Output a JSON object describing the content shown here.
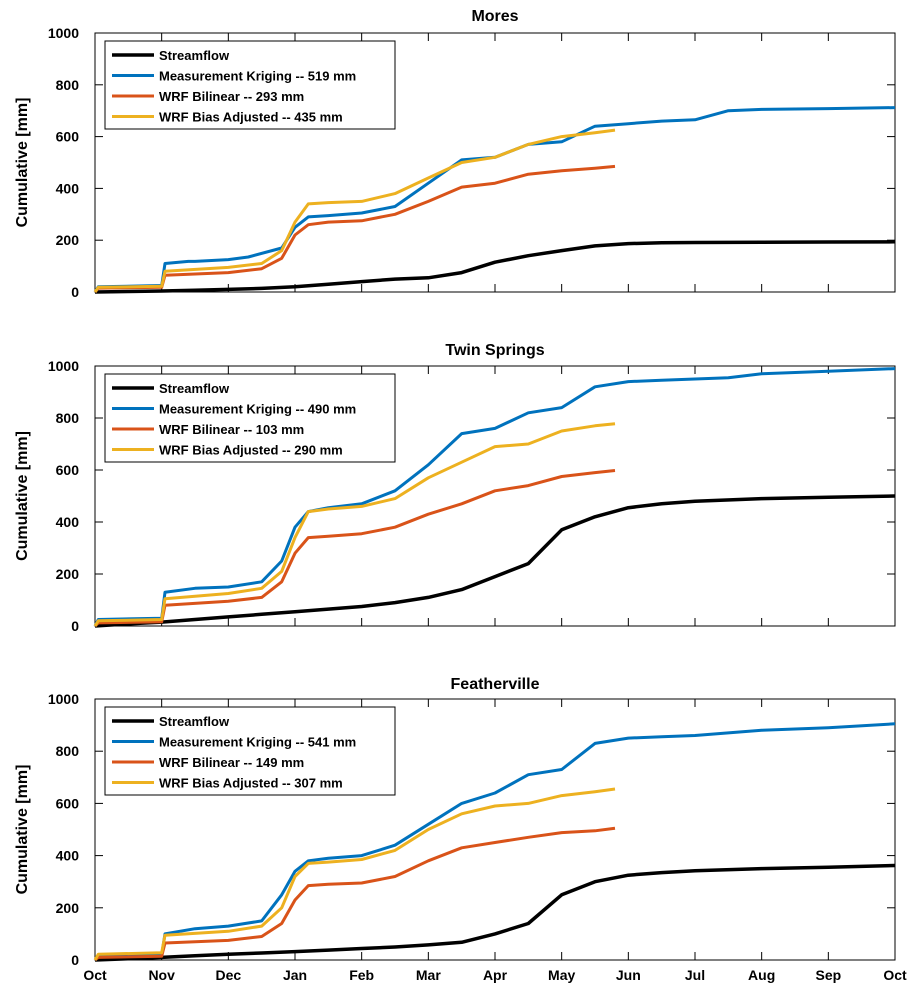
{
  "chart_data": [
    {
      "type": "line",
      "title": "Mores",
      "ylabel": "Cumulative [mm]",
      "xlabel": "",
      "ylim": [
        0,
        1000
      ],
      "yticks": [
        0,
        200,
        400,
        600,
        800,
        1000
      ],
      "xlim": [
        0,
        12
      ],
      "xticks": [
        0,
        1,
        2,
        3,
        4,
        5,
        6,
        7,
        8,
        9,
        10,
        11,
        12
      ],
      "xticklabels": [],
      "legend_position": "top-left",
      "grid": false,
      "series": [
        {
          "name": "Streamflow",
          "color": "#000000",
          "x": [
            0,
            0.5,
            1,
            1.5,
            2,
            2.5,
            3,
            3.5,
            4,
            4.5,
            5,
            5.5,
            6,
            6.5,
            7,
            7.5,
            8,
            8.5,
            9,
            10,
            11,
            12
          ],
          "y": [
            0,
            2,
            4,
            7,
            10,
            14,
            20,
            30,
            40,
            50,
            55,
            75,
            115,
            140,
            160,
            178,
            187,
            190,
            191,
            192,
            193,
            194
          ]
        },
        {
          "name": "Measurement Kriging -- 519 mm",
          "color": "#0072BD",
          "x": [
            0,
            0.05,
            1,
            1.05,
            1.4,
            1.5,
            2,
            2.3,
            2.8,
            3.0,
            3.2,
            3.5,
            4,
            4.5,
            5,
            5.5,
            6,
            6.5,
            7,
            7.5,
            8,
            8.5,
            9,
            9.5,
            10,
            11,
            12
          ],
          "y": [
            0,
            20,
            25,
            110,
            118,
            118,
            125,
            135,
            170,
            250,
            290,
            295,
            305,
            330,
            420,
            510,
            520,
            570,
            580,
            640,
            650,
            660,
            665,
            700,
            705,
            708,
            712
          ]
        },
        {
          "name": "WRF Bilinear -- 293 mm",
          "color": "#D95319",
          "x": [
            0,
            0.05,
            1,
            1.05,
            2,
            2.5,
            2.8,
            3.0,
            3.2,
            3.5,
            4,
            4.5,
            5,
            5.5,
            6,
            6.5,
            7,
            7.5,
            7.8
          ],
          "y": [
            0,
            15,
            18,
            65,
            75,
            90,
            130,
            220,
            260,
            270,
            275,
            300,
            350,
            405,
            420,
            455,
            468,
            478,
            485
          ]
        },
        {
          "name": "WRF Bias Adjusted -- 435 mm",
          "color": "#EDB120",
          "x": [
            0,
            0.05,
            1,
            1.05,
            2,
            2.5,
            2.8,
            3.0,
            3.2,
            3.5,
            4,
            4.5,
            5,
            5.5,
            6,
            6.5,
            7,
            7.5,
            7.8
          ],
          "y": [
            0,
            18,
            22,
            80,
            95,
            110,
            160,
            270,
            340,
            345,
            350,
            380,
            440,
            500,
            520,
            570,
            600,
            615,
            625
          ]
        }
      ]
    },
    {
      "type": "line",
      "title": "Twin Springs",
      "ylabel": "Cumulative [mm]",
      "xlabel": "",
      "ylim": [
        0,
        1000
      ],
      "yticks": [
        0,
        200,
        400,
        600,
        800,
        1000
      ],
      "xlim": [
        0,
        12
      ],
      "xticks": [
        0,
        1,
        2,
        3,
        4,
        5,
        6,
        7,
        8,
        9,
        10,
        11,
        12
      ],
      "xticklabels": [],
      "legend_position": "top-left",
      "grid": false,
      "series": [
        {
          "name": "Streamflow",
          "color": "#000000",
          "x": [
            0,
            0.5,
            1,
            1.5,
            2,
            2.5,
            3,
            3.5,
            4,
            4.5,
            5,
            5.5,
            6,
            6.5,
            7,
            7.5,
            8,
            8.5,
            9,
            10,
            11,
            12
          ],
          "y": [
            0,
            8,
            15,
            25,
            35,
            45,
            55,
            65,
            75,
            90,
            110,
            140,
            190,
            240,
            370,
            420,
            455,
            470,
            480,
            490,
            495,
            500
          ]
        },
        {
          "name": "Measurement Kriging -- 490 mm",
          "color": "#0072BD",
          "x": [
            0,
            0.05,
            1,
            1.05,
            1.5,
            2,
            2.5,
            2.8,
            3.0,
            3.2,
            3.5,
            4,
            4.5,
            5,
            5.5,
            6,
            6.5,
            7,
            7.5,
            8,
            8.5,
            9,
            9.5,
            10,
            11,
            12
          ],
          "y": [
            0,
            25,
            30,
            130,
            145,
            150,
            170,
            250,
            380,
            440,
            455,
            470,
            520,
            620,
            740,
            760,
            820,
            840,
            920,
            940,
            945,
            950,
            955,
            970,
            980,
            990
          ]
        },
        {
          "name": "WRF Bilinear -- 103 mm",
          "color": "#D95319",
          "x": [
            0,
            0.05,
            1,
            1.05,
            2,
            2.5,
            2.8,
            3.0,
            3.2,
            3.5,
            4,
            4.5,
            5,
            5.5,
            6,
            6.5,
            7,
            7.5,
            7.8
          ],
          "y": [
            0,
            12,
            16,
            80,
            95,
            110,
            170,
            280,
            340,
            345,
            355,
            380,
            430,
            470,
            520,
            540,
            575,
            590,
            598
          ]
        },
        {
          "name": "WRF Bias Adjusted -- 290 mm",
          "color": "#EDB120",
          "x": [
            0,
            0.05,
            1,
            1.05,
            2,
            2.5,
            2.8,
            3.0,
            3.2,
            3.5,
            4,
            4.5,
            5,
            5.5,
            6,
            6.5,
            7,
            7.5,
            7.8
          ],
          "y": [
            0,
            20,
            25,
            105,
            125,
            145,
            210,
            340,
            440,
            450,
            460,
            490,
            570,
            630,
            690,
            700,
            750,
            770,
            778
          ]
        }
      ]
    },
    {
      "type": "line",
      "title": "Featherville",
      "ylabel": "Cumulative [mm]",
      "xlabel": "",
      "ylim": [
        0,
        1000
      ],
      "yticks": [
        0,
        200,
        400,
        600,
        800,
        1000
      ],
      "xlim": [
        0,
        12
      ],
      "xticks": [
        0,
        1,
        2,
        3,
        4,
        5,
        6,
        7,
        8,
        9,
        10,
        11,
        12
      ],
      "xticklabels": [
        "Oct",
        "Nov",
        "Dec",
        "Jan",
        "Feb",
        "Mar",
        "Apr",
        "May",
        "Jun",
        "Jul",
        "Aug",
        "Sep",
        "Oct"
      ],
      "legend_position": "top-left",
      "grid": false,
      "series": [
        {
          "name": "Streamflow",
          "color": "#000000",
          "x": [
            0,
            0.5,
            1,
            1.5,
            2,
            2.5,
            3,
            3.5,
            4,
            4.5,
            5,
            5.5,
            6,
            6.5,
            7,
            7.5,
            8,
            8.5,
            9,
            10,
            11,
            12
          ],
          "y": [
            0,
            5,
            10,
            16,
            22,
            27,
            32,
            38,
            44,
            50,
            58,
            68,
            100,
            140,
            250,
            300,
            325,
            335,
            342,
            350,
            355,
            362
          ]
        },
        {
          "name": "Measurement Kriging -- 541 mm",
          "color": "#0072BD",
          "x": [
            0,
            0.05,
            1,
            1.05,
            1.5,
            2,
            2.5,
            2.8,
            3.0,
            3.2,
            3.5,
            4,
            4.5,
            5,
            5.5,
            6,
            6.5,
            7,
            7.5,
            8,
            8.5,
            9,
            9.5,
            10,
            11,
            12
          ],
          "y": [
            0,
            15,
            20,
            100,
            120,
            130,
            150,
            250,
            340,
            380,
            390,
            400,
            440,
            520,
            600,
            640,
            710,
            730,
            830,
            850,
            855,
            860,
            870,
            880,
            890,
            905
          ]
        },
        {
          "name": "WRF Bilinear -- 149 mm",
          "color": "#D95319",
          "x": [
            0,
            0.05,
            1,
            1.05,
            2,
            2.5,
            2.8,
            3.0,
            3.2,
            3.5,
            4,
            4.5,
            5,
            5.5,
            6,
            6.5,
            7,
            7.5,
            7.8
          ],
          "y": [
            0,
            10,
            14,
            65,
            75,
            90,
            140,
            230,
            285,
            290,
            295,
            320,
            380,
            430,
            450,
            470,
            488,
            495,
            505
          ]
        },
        {
          "name": "WRF Bias Adjusted -- 307 mm",
          "color": "#EDB120",
          "x": [
            0,
            0.05,
            1,
            1.05,
            2,
            2.5,
            2.8,
            3.0,
            3.2,
            3.5,
            4,
            4.5,
            5,
            5.5,
            6,
            6.5,
            7,
            7.5,
            7.8
          ],
          "y": [
            0,
            22,
            28,
            95,
            110,
            130,
            200,
            320,
            370,
            375,
            385,
            420,
            500,
            560,
            590,
            600,
            630,
            645,
            655
          ]
        }
      ]
    }
  ]
}
